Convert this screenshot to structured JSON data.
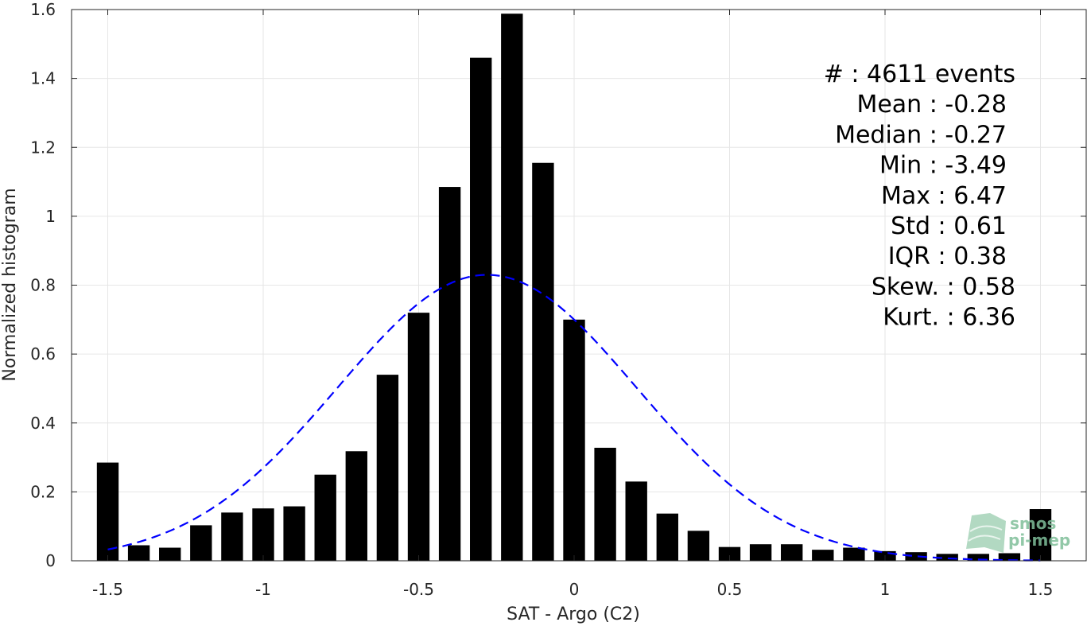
{
  "chart_data": {
    "type": "bar",
    "xlabel": "SAT - Argo (C2)",
    "ylabel": "Normalized histogram",
    "xlim": [
      -1.55,
      1.55
    ],
    "ylim": [
      0,
      1.6
    ],
    "xticks": [
      -1.5,
      -1,
      -0.5,
      0,
      0.5,
      1,
      1.5
    ],
    "xtick_labels": [
      "-1.5",
      "-1",
      "-0.5",
      "0",
      "0.5",
      "1",
      "1.5"
    ],
    "yticks": [
      0,
      0.2,
      0.4,
      0.6,
      0.8,
      1,
      1.2,
      1.4,
      1.6
    ],
    "ytick_labels": [
      "0",
      "0.2",
      "0.4",
      "0.6",
      "0.8",
      "1",
      "1.2",
      "1.4",
      "1.6"
    ],
    "grid": true,
    "bar_color": "#000000",
    "bins": [
      -1.5,
      -1.4,
      -1.3,
      -1.2,
      -1.1,
      -1.0,
      -0.9,
      -0.8,
      -0.7,
      -0.6,
      -0.5,
      -0.4,
      -0.3,
      -0.2,
      -0.1,
      0.0,
      0.1,
      0.2,
      0.3,
      0.4,
      0.5,
      0.6,
      0.7,
      0.8,
      0.9,
      1.0,
      1.1,
      1.2,
      1.3,
      1.4,
      1.5
    ],
    "values": [
      0.285,
      0.045,
      0.038,
      0.103,
      0.14,
      0.152,
      0.158,
      0.25,
      0.318,
      0.54,
      0.72,
      1.085,
      1.46,
      1.588,
      1.155,
      0.7,
      0.328,
      0.23,
      0.137,
      0.087,
      0.04,
      0.048,
      0.048,
      0.032,
      0.038,
      0.028,
      0.025,
      0.02,
      0.02,
      0.022,
      0.15
    ],
    "fit_curve": {
      "type": "gaussian",
      "style": "dashed",
      "color": "#0000ff",
      "mean": -0.28,
      "std": 0.48,
      "peak": 0.83,
      "x_range": [
        -1.5,
        1.5
      ]
    },
    "stats": [
      "#  : 4611 events",
      "Mean : -0.28",
      "Median : -0.27",
      "Min : -3.49",
      "Max : 6.47",
      "Std : 0.61",
      "IQR : 0.38",
      "Skew. : 0.58",
      "Kurt. : 6.36"
    ],
    "logo": {
      "line1": "smos",
      "line2": "pi-mep",
      "color": "#7fbf9a"
    }
  }
}
